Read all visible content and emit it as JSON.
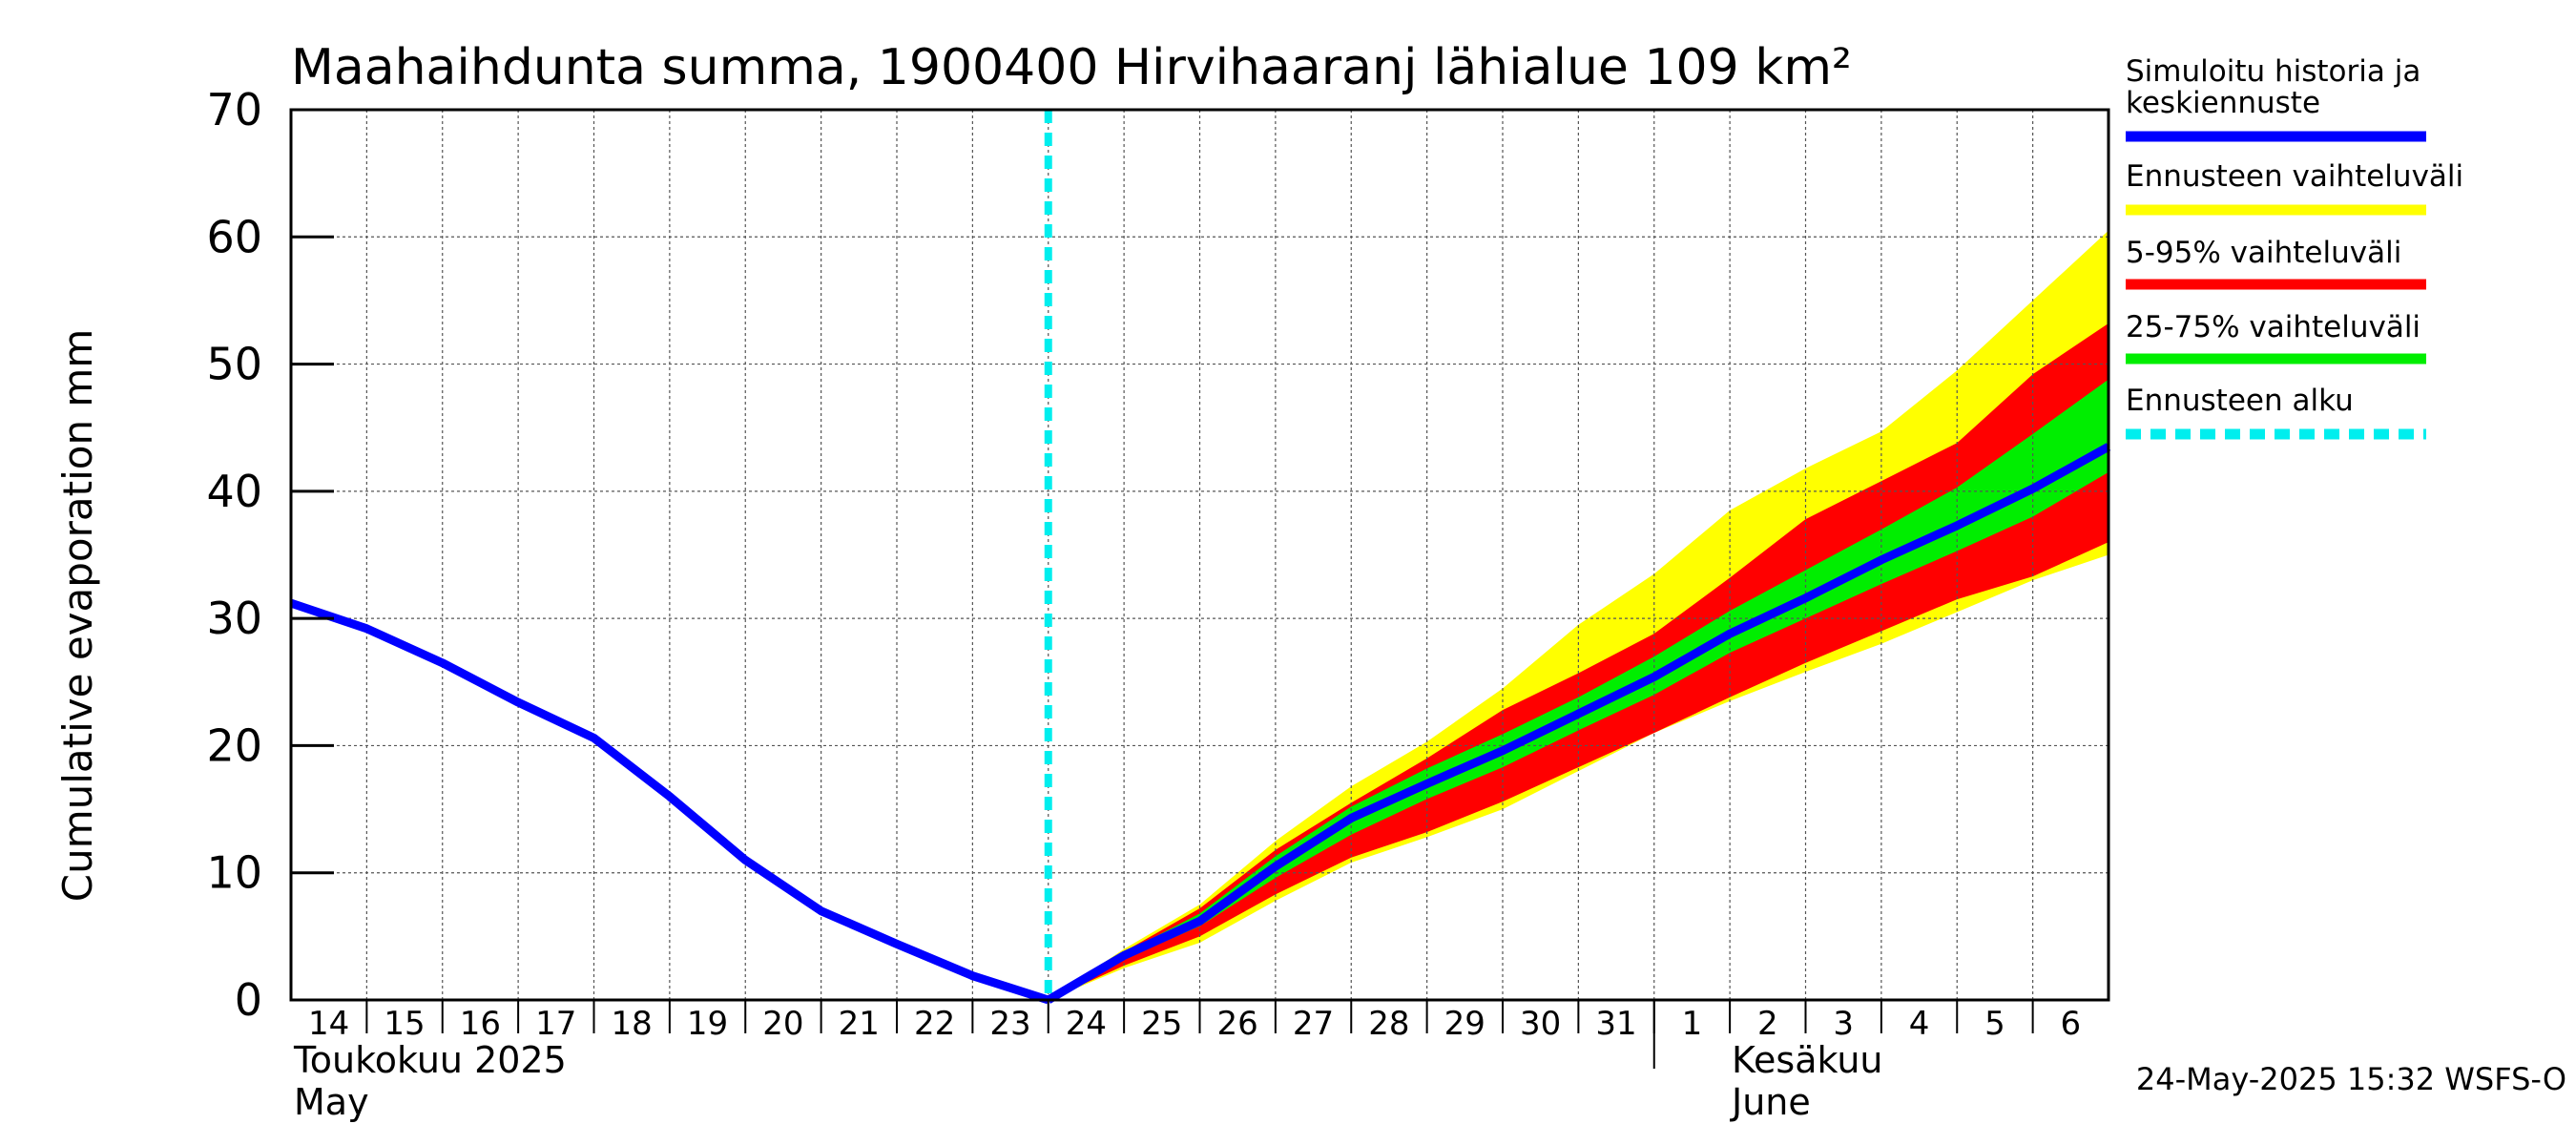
{
  "chart_data": {
    "type": "area",
    "title": "Maahaihdunta summa, 1900400 Hirvihaaranj lähialue 109 km²",
    "ylabel": "Cumulative evaporation   mm",
    "ylim": [
      0,
      70
    ],
    "yticks": [
      0,
      10,
      20,
      30,
      40,
      50,
      60,
      70
    ],
    "xlim": [
      "2025-05-14",
      "2025-06-07"
    ],
    "x_tick_labels": [
      "14",
      "15",
      "16",
      "17",
      "18",
      "19",
      "20",
      "21",
      "22",
      "23",
      "24",
      "25",
      "26",
      "27",
      "28",
      "29",
      "30",
      "31",
      "1",
      "2",
      "3",
      "4",
      "5",
      "6"
    ],
    "month_labels": {
      "may_fi": "Toukokuu  2025",
      "may_en": "May",
      "june_fi": "Kesäkuu",
      "june_en": "June"
    },
    "grid": true,
    "legend_position": "right",
    "forecast_start": "2025-05-24",
    "legend": [
      {
        "label": "Simuloitu historia ja keskiennuste",
        "color": "#0000ff",
        "style": "solid"
      },
      {
        "label": "Ennusteen vaihteluväli",
        "color": "#ffff00",
        "style": "solid"
      },
      {
        "label": "5-95% vaihteluväli",
        "color": "#ff0000",
        "style": "solid"
      },
      {
        "label": "25-75% vaihteluväli",
        "color": "#00ee00",
        "style": "solid"
      },
      {
        "label": "Ennusteen alku",
        "color": "#00eeee",
        "style": "dashed"
      }
    ],
    "history": {
      "name": "Simuloitu historia ja keskiennuste",
      "x": [
        "2025-05-14",
        "2025-05-15",
        "2025-05-16",
        "2025-05-17",
        "2025-05-18",
        "2025-05-19",
        "2025-05-20",
        "2025-05-21",
        "2025-05-22",
        "2025-05-23",
        "2025-05-24"
      ],
      "y": [
        31.2,
        29.2,
        26.5,
        23.4,
        20.6,
        16.0,
        11.0,
        7.0,
        4.4,
        1.9,
        0.0
      ]
    },
    "forecast_x": [
      "2025-05-24",
      "2025-05-25",
      "2025-05-26",
      "2025-05-27",
      "2025-05-28",
      "2025-05-29",
      "2025-05-30",
      "2025-05-31",
      "2025-06-01",
      "2025-06-02",
      "2025-06-03",
      "2025-06-04",
      "2025-06-05",
      "2025-06-06",
      "2025-06-07"
    ],
    "forecast_median": [
      0.0,
      3.5,
      6.2,
      10.5,
      14.3,
      17.0,
      19.6,
      22.5,
      25.4,
      28.8,
      31.6,
      34.6,
      37.3,
      40.2,
      43.5
    ],
    "band_full": {
      "low": [
        0.0,
        2.5,
        4.5,
        7.8,
        10.8,
        12.8,
        15.0,
        18.0,
        21.0,
        23.5,
        25.8,
        28.0,
        30.5,
        33.0,
        35.0
      ],
      "high": [
        0.0,
        4.0,
        7.5,
        12.5,
        16.8,
        20.3,
        24.5,
        29.5,
        33.5,
        38.5,
        41.8,
        44.7,
        49.5,
        55.0,
        60.5
      ]
    },
    "band_5_95": {
      "low": [
        0.0,
        2.7,
        5.0,
        8.3,
        11.2,
        13.2,
        15.6,
        18.3,
        21.0,
        23.8,
        26.5,
        29.0,
        31.5,
        33.3,
        36.0
      ],
      "high": [
        0.0,
        3.8,
        7.2,
        11.8,
        15.5,
        19.0,
        22.8,
        25.7,
        28.8,
        33.2,
        37.8,
        40.8,
        43.8,
        49.2,
        53.2
      ]
    },
    "band_25_75": {
      "low": [
        0.0,
        3.2,
        5.8,
        9.6,
        13.0,
        15.8,
        18.3,
        21.2,
        24.0,
        27.3,
        30.0,
        32.7,
        35.3,
        38.0,
        41.5
      ],
      "high": [
        0.0,
        3.7,
        6.8,
        11.3,
        15.2,
        18.2,
        20.9,
        23.8,
        27.0,
        30.6,
        33.8,
        37.0,
        40.3,
        44.5,
        48.8
      ]
    }
  },
  "timestamp": "24-May-2025 15:32 WSFS-O"
}
